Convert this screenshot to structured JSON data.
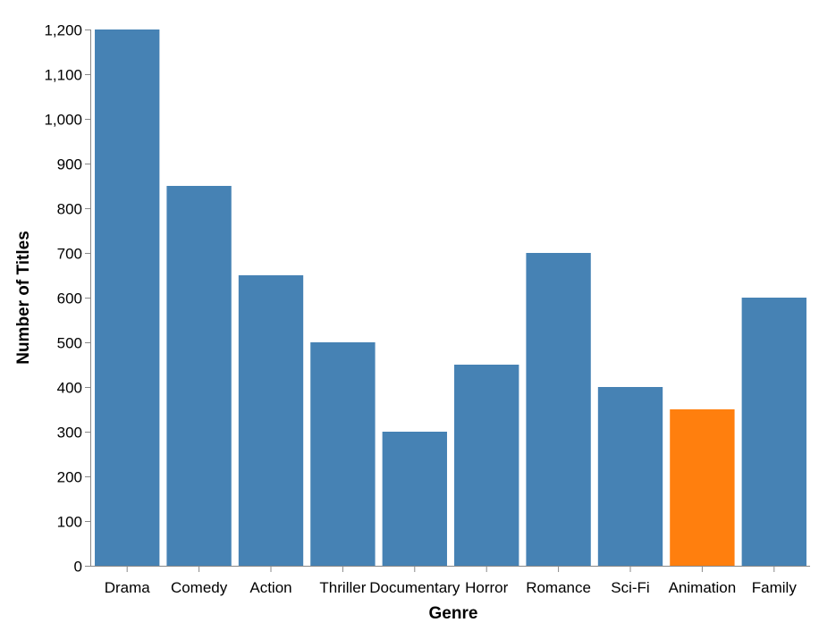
{
  "chart_data": {
    "type": "bar",
    "xlabel": "Genre",
    "ylabel": "Number of Titles",
    "categories": [
      "Drama",
      "Comedy",
      "Action",
      "Thriller",
      "Documentary",
      "Horror",
      "Romance",
      "Sci-Fi",
      "Animation",
      "Family"
    ],
    "values": [
      1200,
      850,
      650,
      500,
      300,
      450,
      700,
      400,
      350,
      600
    ],
    "highlight": "Animation",
    "ylim": [
      0,
      1200
    ],
    "yticks": [
      0,
      100,
      200,
      300,
      400,
      500,
      600,
      700,
      800,
      900,
      1000,
      1100,
      1200
    ],
    "ytick_labels": [
      "0",
      "100",
      "200",
      "300",
      "400",
      "500",
      "600",
      "700",
      "800",
      "900",
      "1,000",
      "1,100",
      "1,200"
    ],
    "colors": {
      "bar": "#4682b4",
      "highlight": "#ff7f0e",
      "axis": "#888888"
    },
    "grid": false,
    "legend": "none"
  }
}
